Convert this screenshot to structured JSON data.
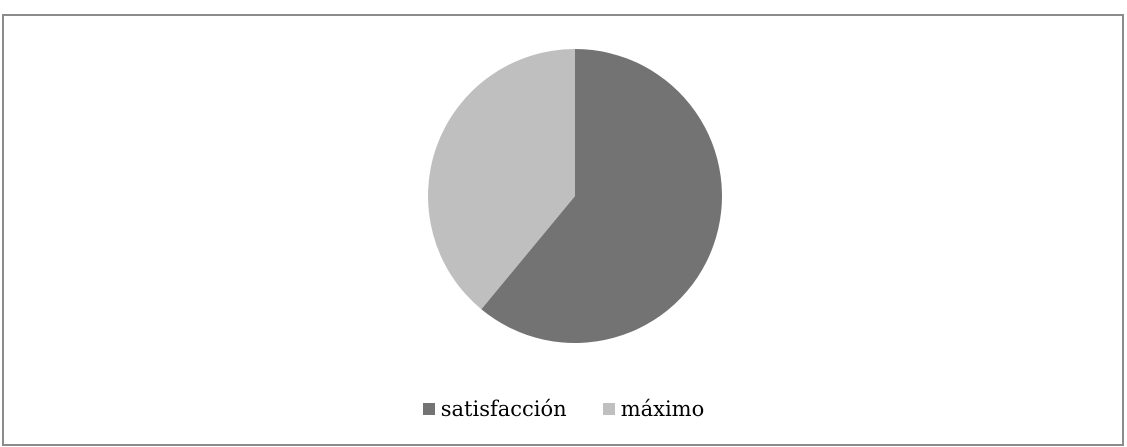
{
  "chart_data": {
    "type": "pie",
    "title": "",
    "slices": [
      {
        "label": "satisfacción",
        "value": 61,
        "color": "#737373"
      },
      {
        "label": "máximo",
        "value": 39,
        "color": "#bfbfbf"
      }
    ],
    "start_angle_deg": 0,
    "direction": "clockwise",
    "legend_position": "bottom"
  }
}
